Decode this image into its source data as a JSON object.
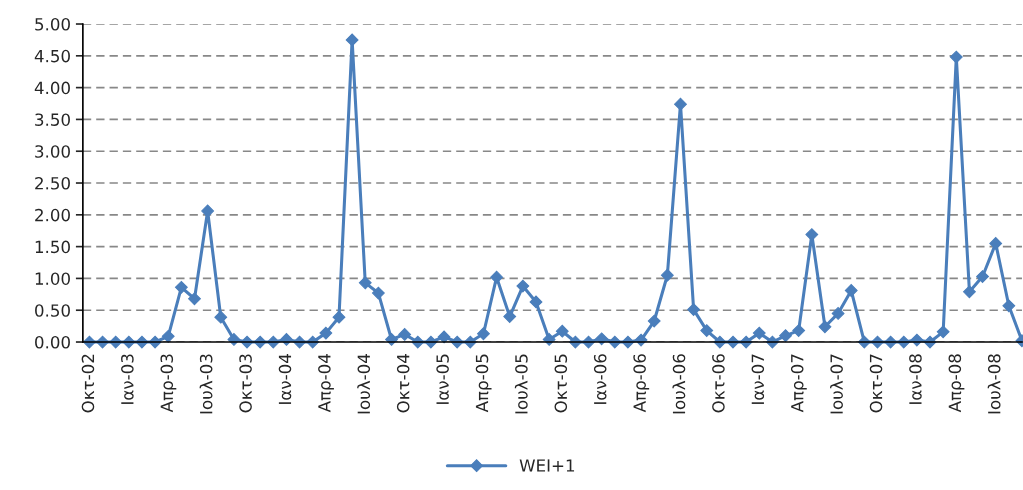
{
  "chart_data": {
    "type": "line",
    "categories": [
      "Οκτ-02",
      null,
      null,
      "Ιαν-03",
      null,
      null,
      "Απρ-03",
      null,
      null,
      "Ιουλ-03",
      null,
      null,
      "Οκτ-03",
      null,
      null,
      "Ιαν-04",
      null,
      null,
      "Απρ-04",
      null,
      null,
      "Ιουλ-04",
      null,
      null,
      "Οκτ-04",
      null,
      null,
      "Ιαν-05",
      null,
      null,
      "Απρ-05",
      null,
      null,
      "Ιουλ-05",
      null,
      null,
      "Οκτ-05",
      null,
      null,
      "Ιαν-06",
      null,
      null,
      "Απρ-06",
      null,
      null,
      "Ιουλ-06",
      null,
      null,
      "Οκτ-06",
      null,
      null,
      "Ιαν-07",
      null,
      null,
      "Απρ-07",
      null,
      null,
      "Ιουλ-07",
      null,
      null,
      "Οκτ-07",
      null,
      null,
      "Ιαν-08",
      null,
      null,
      "Απρ-08",
      null,
      null,
      "Ιουλ-08",
      null,
      null
    ],
    "series": [
      {
        "name": "WEI+1",
        "color": "#4a7ebb",
        "values": [
          0,
          0,
          0,
          0,
          0,
          0,
          0.09,
          0.86,
          0.68,
          2.06,
          0.39,
          0.04,
          0,
          0,
          0,
          0.04,
          0,
          0,
          0.14,
          0.39,
          4.75,
          0.93,
          0.77,
          0.04,
          0.12,
          0,
          0,
          0.08,
          0,
          0,
          0.13,
          1.02,
          0.4,
          0.88,
          0.63,
          0.04,
          0.17,
          0,
          0,
          0.05,
          0,
          0,
          0.03,
          0.33,
          1.05,
          3.74,
          0.51,
          0.18,
          0,
          0,
          0,
          0.14,
          0,
          0.1,
          0.18,
          1.69,
          0.24,
          0.45,
          0.81,
          0,
          0,
          0,
          0,
          0.03,
          0,
          0.16,
          4.48,
          0.79,
          1.03,
          1.55,
          0.57,
          0.02
        ]
      }
    ],
    "ylim": [
      0,
      5
    ],
    "yticks": [
      {
        "value": 0,
        "label": "0.00"
      },
      {
        "value": 0.5,
        "label": "0.50"
      },
      {
        "value": 1,
        "label": "1.00"
      },
      {
        "value": 1.5,
        "label": "1.50"
      },
      {
        "value": 2,
        "label": "2.00"
      },
      {
        "value": 2.5,
        "label": "2.50"
      },
      {
        "value": 3,
        "label": "3.00"
      },
      {
        "value": 3.5,
        "label": "3.50"
      },
      {
        "value": 4,
        "label": "4.00"
      },
      {
        "value": 4.5,
        "label": "4.50"
      },
      {
        "value": 5,
        "label": "5.00"
      }
    ],
    "grid": "y",
    "legend": "bottom",
    "marker": "diamond",
    "line_style": "solid"
  }
}
